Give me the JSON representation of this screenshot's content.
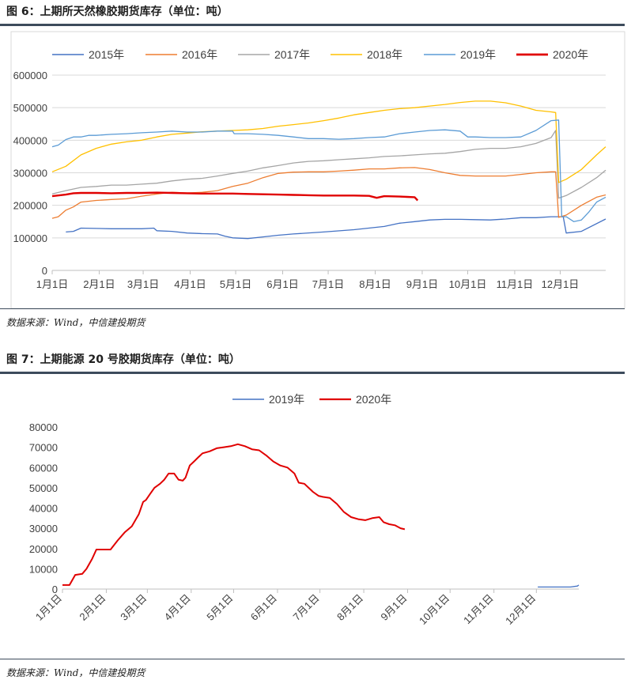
{
  "figure6": {
    "title": "图 6：上期所天然橡胶期货库存（单位：吨）",
    "source": "数据来源：Wind，中信建投期货"
  },
  "figure7": {
    "title": "图 7：上期能源 20 号胶期货库存（单位：吨）",
    "source": "数据来源：Wind，中信建投期货"
  },
  "chart_data": [
    {
      "type": "line",
      "title": "",
      "xlabel": "",
      "ylabel": "",
      "ylim": [
        0,
        600000
      ],
      "yticks": [
        0,
        100000,
        200000,
        300000,
        400000,
        500000,
        600000
      ],
      "ytick_labels": [
        "0",
        "100000",
        "200000",
        "300000",
        "400000",
        "500000",
        "600000"
      ],
      "x_unit": "day_of_year",
      "xlim": [
        1,
        366
      ],
      "categories": [
        "1月1日",
        "2月1日",
        "3月1日",
        "4月1日",
        "5月1日",
        "6月1日",
        "7月1日",
        "8月1日",
        "9月1日",
        "10月1日",
        "11月1日",
        "12月1日"
      ],
      "grid": "horizontal",
      "legend": "top",
      "series": [
        {
          "name": "2015年",
          "color": "#4472c4",
          "width": 1.3,
          "x": [
            10,
            15,
            20,
            40,
            60,
            68,
            70,
            80,
            90,
            100,
            110,
            115,
            120,
            130,
            140,
            150,
            160,
            180,
            200,
            220,
            230,
            240,
            250,
            260,
            270,
            280,
            290,
            300,
            310,
            320,
            330,
            338,
            340,
            350,
            366
          ],
          "y": [
            118000,
            120000,
            130000,
            128000,
            128000,
            130000,
            122000,
            120000,
            115000,
            113000,
            112000,
            105000,
            100000,
            98000,
            103000,
            108000,
            112000,
            118000,
            125000,
            135000,
            145000,
            150000,
            155000,
            157000,
            157000,
            156000,
            155000,
            158000,
            162000,
            162000,
            165000,
            165000,
            115000,
            120000,
            158000
          ]
        },
        {
          "name": "2016年",
          "color": "#ed7d31",
          "width": 1.3,
          "x": [
            1,
            5,
            10,
            15,
            20,
            30,
            40,
            50,
            60,
            70,
            80,
            90,
            100,
            110,
            120,
            130,
            140,
            150,
            160,
            170,
            180,
            190,
            200,
            210,
            220,
            230,
            240,
            250,
            260,
            270,
            280,
            290,
            300,
            310,
            320,
            330,
            333,
            335,
            340,
            350,
            360,
            366
          ],
          "y": [
            160000,
            165000,
            185000,
            195000,
            210000,
            215000,
            218000,
            220000,
            228000,
            235000,
            240000,
            238000,
            240000,
            245000,
            258000,
            268000,
            285000,
            298000,
            302000,
            303000,
            303000,
            305000,
            308000,
            312000,
            312000,
            315000,
            316000,
            310000,
            300000,
            292000,
            290000,
            290000,
            290000,
            295000,
            300000,
            303000,
            303000,
            163000,
            170000,
            200000,
            225000,
            232000
          ]
        },
        {
          "name": "2017年",
          "color": "#a5a5a5",
          "width": 1.3,
          "x": [
            1,
            10,
            20,
            30,
            40,
            50,
            60,
            70,
            80,
            90,
            100,
            110,
            120,
            130,
            140,
            150,
            160,
            170,
            180,
            190,
            200,
            210,
            220,
            230,
            240,
            250,
            260,
            270,
            280,
            290,
            300,
            310,
            320,
            330,
            333,
            335,
            340,
            350,
            360,
            366
          ],
          "y": [
            235000,
            245000,
            255000,
            258000,
            262000,
            262000,
            265000,
            268000,
            275000,
            280000,
            283000,
            290000,
            298000,
            305000,
            315000,
            322000,
            330000,
            335000,
            337000,
            340000,
            343000,
            346000,
            350000,
            352000,
            355000,
            358000,
            360000,
            365000,
            372000,
            375000,
            375000,
            380000,
            390000,
            408000,
            430000,
            222000,
            230000,
            255000,
            285000,
            308000
          ]
        },
        {
          "name": "2018年",
          "color": "#ffc000",
          "width": 1.3,
          "x": [
            1,
            10,
            20,
            30,
            40,
            50,
            60,
            70,
            80,
            90,
            100,
            110,
            120,
            130,
            140,
            150,
            160,
            170,
            180,
            190,
            200,
            210,
            220,
            230,
            240,
            250,
            260,
            270,
            280,
            290,
            300,
            310,
            320,
            330,
            333,
            335,
            340,
            350,
            360,
            366
          ],
          "y": [
            303000,
            320000,
            355000,
            375000,
            388000,
            395000,
            400000,
            410000,
            418000,
            422000,
            426000,
            428000,
            430000,
            432000,
            436000,
            443000,
            448000,
            453000,
            460000,
            468000,
            478000,
            485000,
            492000,
            497000,
            500000,
            505000,
            510000,
            516000,
            520000,
            520000,
            515000,
            505000,
            492000,
            487000,
            485000,
            270000,
            280000,
            310000,
            355000,
            380000
          ]
        },
        {
          "name": "2019年",
          "color": "#5b9bd5",
          "width": 1.3,
          "x": [
            1,
            5,
            10,
            15,
            20,
            25,
            30,
            40,
            50,
            60,
            70,
            80,
            90,
            100,
            110,
            120,
            121,
            130,
            140,
            150,
            160,
            170,
            180,
            190,
            200,
            210,
            220,
            230,
            240,
            250,
            260,
            270,
            275,
            280,
            290,
            300,
            310,
            320,
            330,
            335,
            337,
            340,
            345,
            350,
            355,
            360,
            366
          ],
          "y": [
            380000,
            385000,
            402000,
            410000,
            410000,
            415000,
            415000,
            418000,
            420000,
            423000,
            425000,
            428000,
            425000,
            425000,
            428000,
            428000,
            420000,
            420000,
            418000,
            415000,
            410000,
            405000,
            405000,
            403000,
            405000,
            408000,
            410000,
            420000,
            425000,
            430000,
            432000,
            428000,
            410000,
            410000,
            408000,
            408000,
            410000,
            430000,
            460000,
            462000,
            165000,
            165000,
            150000,
            155000,
            180000,
            210000,
            225000
          ]
        },
        {
          "name": "2020年",
          "color": "#e00000",
          "width": 2.4,
          "x": [
            1,
            10,
            15,
            20,
            30,
            40,
            50,
            60,
            70,
            80,
            90,
            100,
            110,
            120,
            130,
            140,
            150,
            160,
            170,
            180,
            190,
            200,
            210,
            215,
            220,
            230,
            235,
            240,
            242
          ],
          "y": [
            228000,
            233000,
            237000,
            238000,
            238000,
            237000,
            238000,
            238000,
            239000,
            238000,
            237000,
            236000,
            236000,
            236000,
            235000,
            234000,
            233000,
            232000,
            231000,
            230000,
            230000,
            230000,
            229000,
            223000,
            228000,
            227000,
            226000,
            225000,
            215000
          ]
        }
      ]
    },
    {
      "type": "line",
      "title": "",
      "xlabel": "",
      "ylabel": "",
      "ylim": [
        0,
        80000
      ],
      "yticks": [
        0,
        10000,
        20000,
        30000,
        40000,
        50000,
        60000,
        70000,
        80000
      ],
      "ytick_labels": [
        "0",
        "10000",
        "20000",
        "30000",
        "40000",
        "50000",
        "60000",
        "70000",
        "80000"
      ],
      "x_unit": "day_of_year",
      "xlim": [
        1,
        366
      ],
      "categories": [
        "1月1日",
        "2月1日",
        "3月1日",
        "4月1日",
        "5月1日",
        "6月1日",
        "7月1日",
        "8月1日",
        "9月1日",
        "10月1日",
        "11月1日",
        "12月1日"
      ],
      "grid": "none",
      "legend": "top",
      "series": [
        {
          "name": "2019年",
          "color": "#4472c4",
          "width": 1.3,
          "x": [
            337,
            340,
            345,
            350,
            360,
            365,
            366
          ],
          "y": [
            1000,
            1000,
            1000,
            1000,
            1000,
            1500,
            2000
          ]
        },
        {
          "name": "2020年",
          "color": "#e00000",
          "width": 2.0,
          "x": [
            1,
            6,
            10,
            15,
            18,
            22,
            25,
            30,
            35,
            40,
            45,
            50,
            55,
            58,
            60,
            63,
            66,
            70,
            73,
            76,
            80,
            83,
            86,
            88,
            91,
            94,
            97,
            100,
            105,
            110,
            115,
            120,
            125,
            130,
            135,
            140,
            145,
            150,
            155,
            160,
            165,
            168,
            172,
            175,
            178,
            182,
            185,
            190,
            195,
            200,
            205,
            210,
            215,
            220,
            225,
            228,
            232,
            236,
            240,
            243
          ],
          "y": [
            2000,
            2000,
            7000,
            7500,
            10000,
            15000,
            19500,
            19500,
            19500,
            24000,
            28000,
            31000,
            37000,
            43000,
            44000,
            47000,
            50000,
            52000,
            54000,
            57000,
            57000,
            54000,
            53500,
            55000,
            61000,
            63000,
            65000,
            67000,
            68000,
            69500,
            70000,
            70500,
            71500,
            70500,
            69000,
            68500,
            66000,
            63000,
            61000,
            60000,
            57000,
            52500,
            52000,
            50000,
            48000,
            46000,
            45500,
            45000,
            42000,
            38000,
            35500,
            34500,
            34000,
            35000,
            35500,
            33000,
            32000,
            31500,
            30000,
            29500
          ]
        }
      ]
    }
  ]
}
